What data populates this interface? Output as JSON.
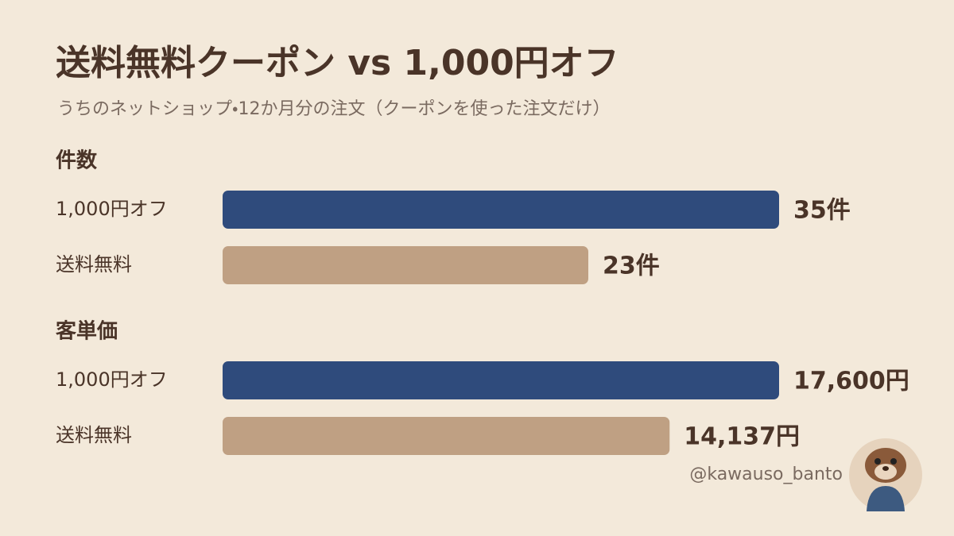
{
  "header": {
    "title": "送料無料クーポン vs 1,000円オフ",
    "subtitle": "うちのネットショップ・12か月分の注文（クーポンを使った注文だけ）",
    "handle": "@kawauso_banto"
  },
  "chart_data": [
    {
      "type": "bar",
      "title": "件数",
      "categories": [
        "1,000円オフ",
        "送料無料"
      ],
      "values": [
        35,
        23
      ],
      "value_labels": [
        "35件",
        "23件"
      ],
      "colors": [
        "#2f4b7c",
        "#bfa083"
      ]
    },
    {
      "type": "bar",
      "title": "客単価",
      "categories": [
        "1,000円オフ",
        "送料無料"
      ],
      "values": [
        17600,
        14137
      ],
      "value_labels": [
        "17,600円",
        "14,137円"
      ],
      "colors": [
        "#2f4b7c",
        "#bfa083"
      ]
    }
  ]
}
